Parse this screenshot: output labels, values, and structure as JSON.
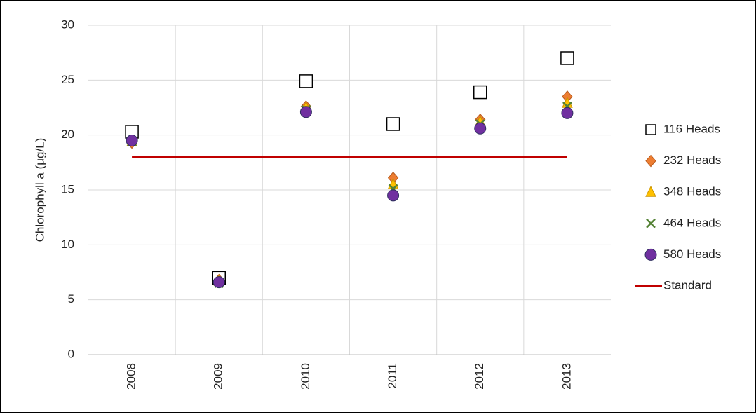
{
  "chart_data": {
    "type": "scatter",
    "y_label": "Chlorophyll a (μg/L)",
    "categories": [
      "2008",
      "2009",
      "2010",
      "2011",
      "2012",
      "2013"
    ],
    "ylim": [
      0,
      30
    ],
    "yticks": [
      0,
      5,
      10,
      15,
      20,
      25,
      30
    ],
    "grid": true,
    "legend": "right",
    "series": [
      {
        "name": "116 Heads",
        "marker": "square",
        "color": "#ffffff",
        "values": [
          20.3,
          7.0,
          24.9,
          21.0,
          23.9,
          27.0
        ]
      },
      {
        "name": "232 Heads",
        "marker": "diamond",
        "color": "#ed7d31",
        "values": [
          19.3,
          6.8,
          22.6,
          16.1,
          21.4,
          23.5
        ]
      },
      {
        "name": "348 Heads",
        "marker": "triangle",
        "color": "#ffc000",
        "values": [
          19.4,
          6.7,
          22.5,
          15.5,
          21.2,
          22.9
        ]
      },
      {
        "name": "464 Heads",
        "marker": "x",
        "color": "#548235",
        "values": [
          19.4,
          6.5,
          22.3,
          15.1,
          21.0,
          22.6
        ]
      },
      {
        "name": "580 Heads",
        "marker": "circle",
        "color": "#7030a0",
        "values": [
          19.5,
          6.6,
          22.1,
          14.5,
          20.6,
          22.0
        ]
      },
      {
        "name": "Standard",
        "marker": "line",
        "color": "#c00000",
        "values": [
          18,
          18,
          18,
          18,
          18,
          18
        ]
      }
    ]
  }
}
